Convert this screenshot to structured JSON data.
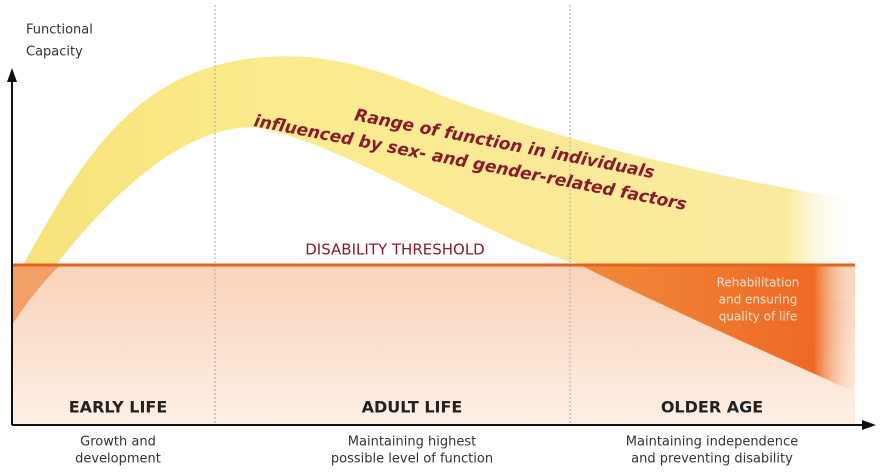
{
  "axis_label": [
    "Functional",
    "Capacity"
  ],
  "band_label": [
    "Range of function in individuals",
    "influenced by sex- and gender-related factors"
  ],
  "threshold_label": "DISABILITY THRESHOLD",
  "rehab_label": [
    "Rehabilitation",
    "and ensuring",
    "quality of life"
  ],
  "phases": [
    {
      "title": "EARLY LIFE",
      "description": [
        "Growth and",
        "development"
      ]
    },
    {
      "title": "ADULT LIFE",
      "description": [
        "Maintaining highest",
        "possible level of function"
      ]
    },
    {
      "title": "OLDER AGE",
      "description": [
        "Maintaining independence",
        "and preventing disability"
      ]
    }
  ]
}
